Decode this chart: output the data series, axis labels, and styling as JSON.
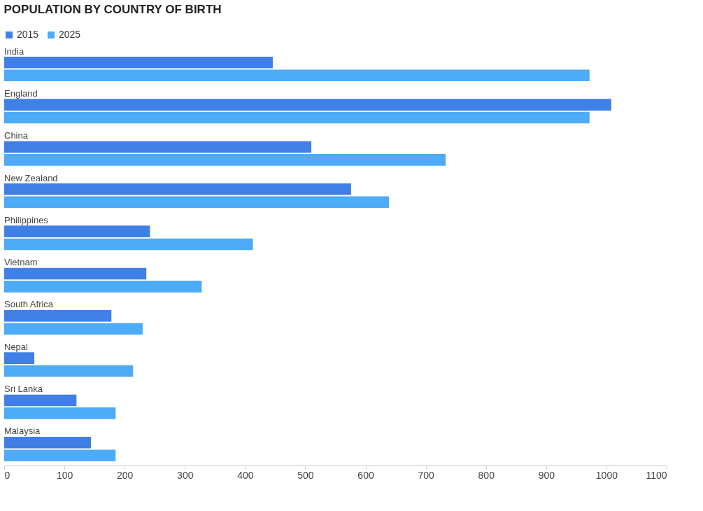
{
  "chart_data": {
    "type": "bar",
    "orientation": "horizontal",
    "title": "POPULATION BY COUNTRY OF BIRTH",
    "categories": [
      "India",
      "England",
      "China",
      "New Zealand",
      "Philippines",
      "Vietnam",
      "South Africa",
      "Nepal",
      "Sri Lanka",
      "Malaysia"
    ],
    "series": [
      {
        "name": "2015",
        "color": "#3f7fe6",
        "values": [
          446,
          1008,
          510,
          576,
          242,
          236,
          178,
          50,
          120,
          144
        ]
      },
      {
        "name": "2025",
        "color": "#4dabf7",
        "values": [
          972,
          972,
          733,
          639,
          413,
          328,
          230,
          214,
          185,
          185
        ]
      }
    ],
    "xlim": [
      0,
      1100
    ],
    "xticks": [
      0,
      100,
      200,
      300,
      400,
      500,
      600,
      700,
      800,
      900,
      1000,
      1100
    ],
    "grid": false,
    "legend": "top left"
  }
}
